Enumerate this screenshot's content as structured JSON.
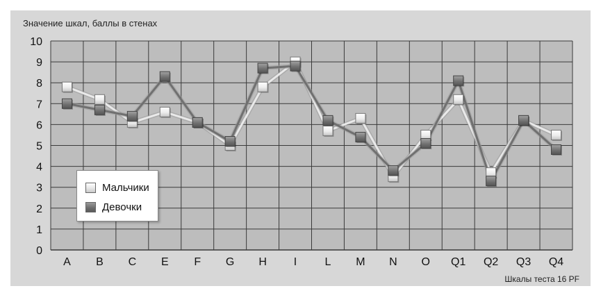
{
  "chart_data": {
    "type": "line",
    "ylabel": "Значение шкал, баллы в стенах",
    "xlabel": "Шкалы теста 16 PF",
    "categories": [
      "A",
      "B",
      "C",
      "E",
      "F",
      "G",
      "H",
      "I",
      "L",
      "M",
      "N",
      "O",
      "Q1",
      "Q2",
      "Q3",
      "Q4"
    ],
    "ylim": [
      0,
      10
    ],
    "yticks": [
      "0",
      "1",
      "2",
      "3",
      "4",
      "5",
      "6",
      "7",
      "8",
      "9",
      "10"
    ],
    "grid": true,
    "legend_position": "bottom-left",
    "series": [
      {
        "name": "Мальчики",
        "values": [
          7.8,
          7.2,
          6.1,
          6.6,
          6.1,
          5.0,
          7.8,
          9.0,
          5.7,
          6.3,
          3.5,
          5.5,
          7.2,
          3.7,
          6.2,
          5.5
        ]
      },
      {
        "name": "Девочки",
        "values": [
          7.0,
          6.7,
          6.4,
          8.3,
          6.1,
          5.2,
          8.7,
          8.8,
          6.2,
          5.4,
          3.8,
          5.1,
          8.1,
          3.3,
          6.2,
          4.8
        ]
      }
    ],
    "colors": {
      "boys_line": "#e9e9e9",
      "girls_line": "#707070",
      "grid": "#3a3a3a",
      "plot_bg": "#bdbdbd",
      "panel_bg": "#d7d7d7"
    }
  }
}
